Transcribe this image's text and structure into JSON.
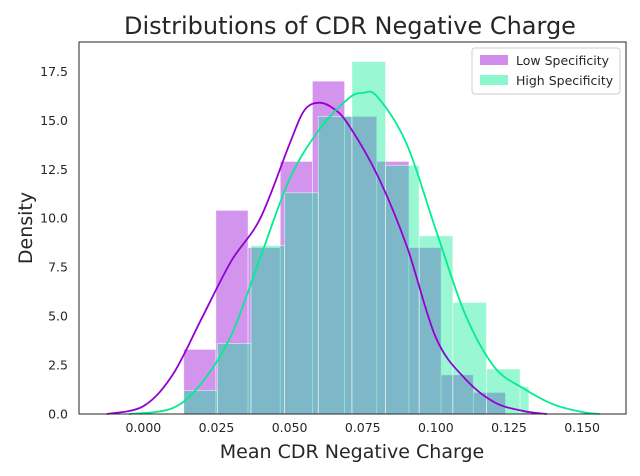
{
  "chart_data": {
    "type": "histogram",
    "title": "Distributions of CDR Negative Charge",
    "xlabel": "Mean CDR Negative Charge",
    "ylabel": "Density",
    "xlim": [
      -0.022,
      0.165
    ],
    "ylim": [
      0,
      19.0
    ],
    "x_ticks": [
      0.0,
      0.025,
      0.05,
      0.075,
      0.1,
      0.125,
      0.15
    ],
    "x_tick_labels": [
      "0.000",
      "0.025",
      "0.050",
      "0.075",
      "0.100",
      "0.125",
      "0.150"
    ],
    "y_ticks": [
      0.0,
      2.5,
      5.0,
      7.5,
      10.0,
      12.5,
      15.0,
      17.5
    ],
    "y_tick_labels": [
      "0.0",
      "2.5",
      "5.0",
      "7.5",
      "10.0",
      "12.5",
      "15.0",
      "17.5"
    ],
    "grid": false,
    "legend_position": "top-right",
    "series": [
      {
        "name": "Low Specificity",
        "color": "#9400d3",
        "bin_edges": [
          0.0138,
          0.0248,
          0.0358,
          0.0468,
          0.0578,
          0.0688,
          0.0798,
          0.0908,
          0.1018,
          0.1128,
          0.1238
        ],
        "densities": [
          3.3,
          10.4,
          8.5,
          12.9,
          17.0,
          15.2,
          12.9,
          8.5,
          2.0,
          1.1
        ],
        "kde": {
          "x": [
            -0.0125,
            0.0,
            0.01,
            0.02,
            0.03,
            0.04,
            0.05,
            0.055,
            0.06,
            0.065,
            0.07,
            0.08,
            0.09,
            0.1,
            0.11,
            0.12,
            0.13,
            0.138
          ],
          "y": [
            0.0,
            0.4,
            2.0,
            4.9,
            7.8,
            10.0,
            13.8,
            15.5,
            15.9,
            15.6,
            14.8,
            12.2,
            8.6,
            3.9,
            1.8,
            0.6,
            0.15,
            0.0
          ]
        }
      },
      {
        "name": "High Specificity",
        "color": "#00ee90",
        "bin_edges": [
          0.0138,
          0.0253,
          0.0368,
          0.0483,
          0.0598,
          0.0713,
          0.0828,
          0.0943,
          0.1058,
          0.1173,
          0.1288,
          0.1318
        ],
        "densities": [
          1.2,
          3.6,
          8.6,
          11.3,
          15.2,
          18.0,
          12.7,
          9.1,
          5.7,
          2.3,
          1.4
        ],
        "kde": {
          "x": [
            -0.005,
            0.01,
            0.02,
            0.03,
            0.04,
            0.05,
            0.06,
            0.07,
            0.075,
            0.08,
            0.09,
            0.1,
            0.11,
            0.12,
            0.13,
            0.14,
            0.15,
            0.156
          ],
          "y": [
            0.0,
            0.3,
            1.6,
            4.0,
            8.0,
            12.0,
            14.5,
            16.1,
            16.4,
            16.2,
            13.8,
            9.4,
            5.1,
            2.4,
            1.3,
            0.5,
            0.1,
            0.0
          ]
        }
      }
    ]
  }
}
